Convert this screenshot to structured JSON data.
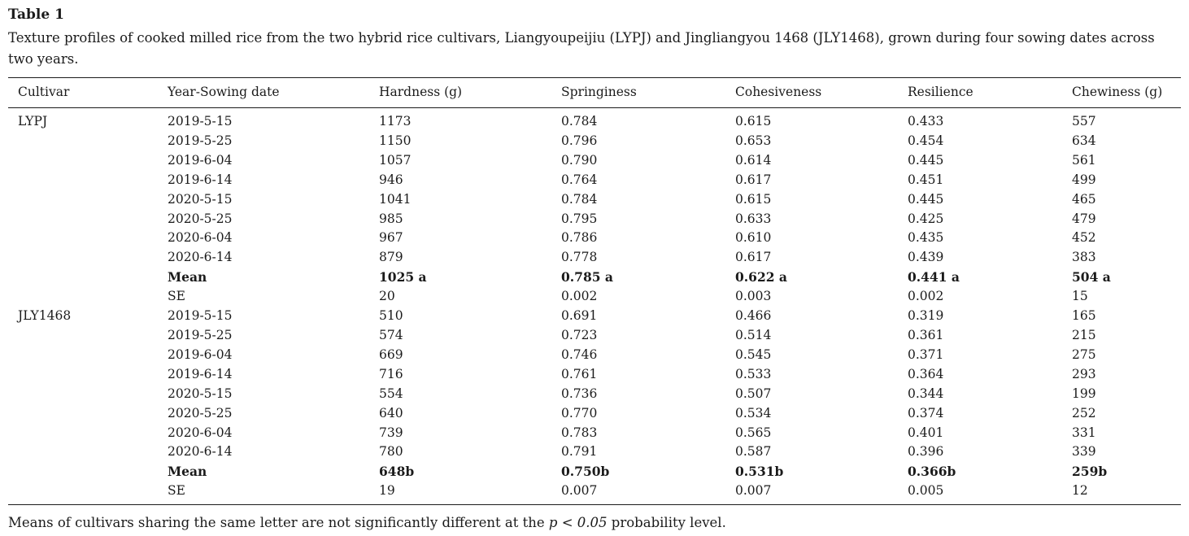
{
  "table": {
    "label": "Table 1",
    "caption": "Texture profiles of cooked milled rice from the two hybrid rice cultivars, Liangyoupeijiu (LYPJ) and Jingliangyou 1468 (JLY1468), grown during four sowing dates across two years.",
    "columns": [
      "Cultivar",
      "Year-Sowing date",
      "Hardness (g)",
      "Springiness",
      "Cohesiveness",
      "Resilience",
      "Chewiness (g)"
    ],
    "rows": [
      {
        "cells": [
          "LYPJ",
          "2019-5-15",
          "1173",
          "0.784",
          "0.615",
          "0.433",
          "557"
        ],
        "bold": false
      },
      {
        "cells": [
          "",
          "2019-5-25",
          "1150",
          "0.796",
          "0.653",
          "0.454",
          "634"
        ],
        "bold": false
      },
      {
        "cells": [
          "",
          "2019-6-04",
          "1057",
          "0.790",
          "0.614",
          "0.445",
          "561"
        ],
        "bold": false
      },
      {
        "cells": [
          "",
          "2019-6-14",
          "946",
          "0.764",
          "0.617",
          "0.451",
          "499"
        ],
        "bold": false
      },
      {
        "cells": [
          "",
          "2020-5-15",
          "1041",
          "0.784",
          "0.615",
          "0.445",
          "465"
        ],
        "bold": false
      },
      {
        "cells": [
          "",
          "2020-5-25",
          "985",
          "0.795",
          "0.633",
          "0.425",
          "479"
        ],
        "bold": false
      },
      {
        "cells": [
          "",
          "2020-6-04",
          "967",
          "0.786",
          "0.610",
          "0.435",
          "452"
        ],
        "bold": false
      },
      {
        "cells": [
          "",
          "2020-6-14",
          "879",
          "0.778",
          "0.617",
          "0.439",
          "383"
        ],
        "bold": false
      },
      {
        "cells": [
          "",
          "Mean",
          "1025 a",
          "0.785 a",
          "0.622 a",
          "0.441 a",
          "504 a"
        ],
        "bold": true
      },
      {
        "cells": [
          "",
          "SE",
          "20",
          "0.002",
          "0.003",
          "0.002",
          "15"
        ],
        "bold": false
      },
      {
        "cells": [
          "JLY1468",
          "2019-5-15",
          "510",
          "0.691",
          "0.466",
          "0.319",
          "165"
        ],
        "bold": false
      },
      {
        "cells": [
          "",
          "2019-5-25",
          "574",
          "0.723",
          "0.514",
          "0.361",
          "215"
        ],
        "bold": false
      },
      {
        "cells": [
          "",
          "2019-6-04",
          "669",
          "0.746",
          "0.545",
          "0.371",
          "275"
        ],
        "bold": false
      },
      {
        "cells": [
          "",
          "2019-6-14",
          "716",
          "0.761",
          "0.533",
          "0.364",
          "293"
        ],
        "bold": false
      },
      {
        "cells": [
          "",
          "2020-5-15",
          "554",
          "0.736",
          "0.507",
          "0.344",
          "199"
        ],
        "bold": false
      },
      {
        "cells": [
          "",
          "2020-5-25",
          "640",
          "0.770",
          "0.534",
          "0.374",
          "252"
        ],
        "bold": false
      },
      {
        "cells": [
          "",
          "2020-6-04",
          "739",
          "0.783",
          "0.565",
          "0.401",
          "331"
        ],
        "bold": false
      },
      {
        "cells": [
          "",
          "2020-6-14",
          "780",
          "0.791",
          "0.587",
          "0.396",
          "339"
        ],
        "bold": false
      },
      {
        "cells": [
          "",
          "Mean",
          "648b",
          "0.750b",
          "0.531b",
          "0.366b",
          "259b"
        ],
        "bold": true
      },
      {
        "cells": [
          "",
          "SE",
          "19",
          "0.007",
          "0.007",
          "0.005",
          "12"
        ],
        "bold": false
      }
    ],
    "footnote": {
      "prefix": "Means of cultivars sharing the same letter are not significantly different at the ",
      "italic": "p < 0.05",
      "suffix": " probability level."
    }
  }
}
